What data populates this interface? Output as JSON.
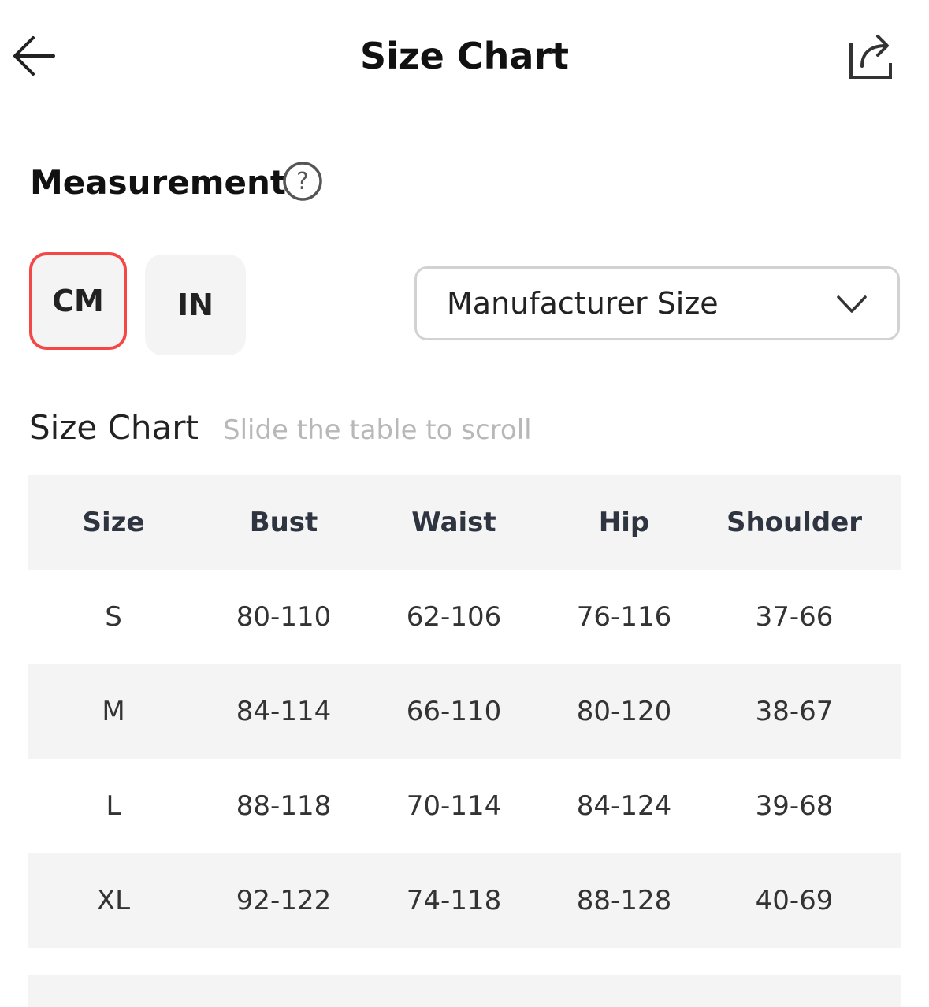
{
  "header": {
    "title": "Size Chart",
    "back_icon": "arrow-left-icon",
    "share_icon": "share-icon"
  },
  "measurement": {
    "label": "Measurement",
    "help_icon": "question-circle-icon"
  },
  "units": {
    "options": [
      "CM",
      "IN"
    ],
    "selected": "CM",
    "accent": "#f44848"
  },
  "size_system": {
    "selected": "Manufacturer Size"
  },
  "size_chart": {
    "title": "Size Chart",
    "hint": "Slide the table to scroll",
    "headers": [
      "Size",
      "Bust",
      "Waist",
      "Hip",
      "Shoulder"
    ],
    "rows": [
      [
        "S",
        "80-110",
        "62-106",
        "76-116",
        "37-66"
      ],
      [
        "M",
        "84-114",
        "66-110",
        "80-120",
        "38-67"
      ],
      [
        "L",
        "88-118",
        "70-114",
        "84-124",
        "39-68"
      ],
      [
        "XL",
        "92-122",
        "74-118",
        "88-128",
        "40-69"
      ]
    ]
  }
}
